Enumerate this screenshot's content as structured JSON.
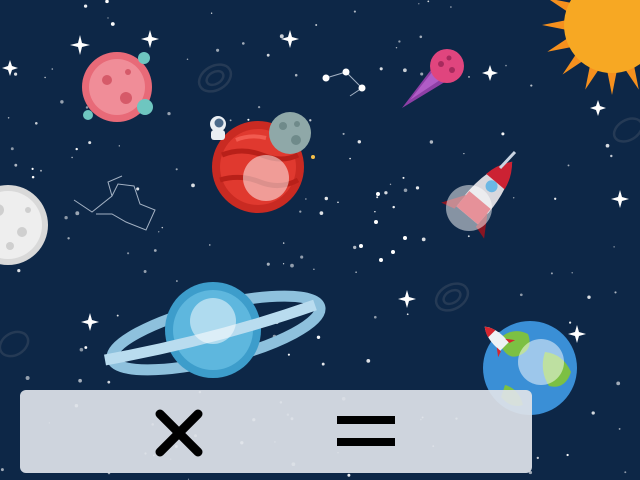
{
  "colors": {
    "background": "#0d2747",
    "panel": "#dfe3e8",
    "symbol": "#000000",
    "tap_marker": "#ffffff"
  },
  "scene": {
    "objects": [
      "sun",
      "pink-planet",
      "comet",
      "astronaut",
      "asteroid",
      "mars",
      "rocket-large",
      "moon",
      "ringed-planet",
      "earth",
      "rocket-small",
      "constellation",
      "galaxy"
    ],
    "tap_targets": [
      "mars",
      "rocket-large",
      "ringed-planet",
      "earth"
    ]
  },
  "equation_panel": {
    "operator_icon": "multiply-icon",
    "equals_icon": "equals-icon"
  }
}
